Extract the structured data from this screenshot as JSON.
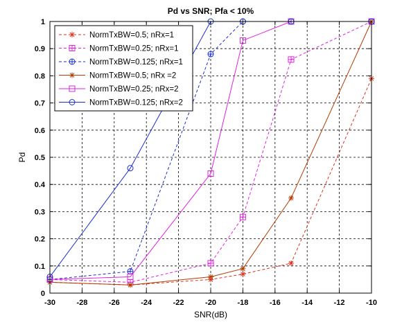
{
  "chart_data": {
    "type": "line",
    "title": "Pd vs SNR; Pfa < 10%",
    "xlabel": "SNR(dB)",
    "ylabel": "Pd",
    "xlim": [
      -30,
      -10
    ],
    "ylim": [
      0,
      1
    ],
    "xticks": [
      -30,
      -28,
      -26,
      -24,
      -22,
      -20,
      -18,
      -16,
      -14,
      -12,
      -10
    ],
    "yticks": [
      0,
      0.1,
      0.2,
      0.3,
      0.4,
      0.5,
      0.6,
      0.7,
      0.8,
      0.9,
      1
    ],
    "xtick_labels": [
      "-30",
      "-28",
      "-26",
      "-24",
      "-22",
      "-20",
      "-18",
      "-16",
      "-14",
      "-12",
      "-10"
    ],
    "ytick_labels": [
      "0",
      "0.1",
      "0.2",
      "0.3",
      "0.4",
      "0.5",
      "0.6",
      "0.7",
      "0.8",
      "0.9",
      "1"
    ],
    "grid": true,
    "legend_position": "top-left",
    "x": [
      -30,
      -25,
      -20,
      -18,
      -15,
      -10
    ],
    "series": [
      {
        "name": "NormTxBW=0.5; nRx=1",
        "values": [
          0.04,
          0.03,
          0.05,
          0.07,
          0.11,
          0.79
        ],
        "color": "#e0301e",
        "dash": "dashed",
        "marker": "star"
      },
      {
        "name": "NormTxBW=0.25; nRx=1",
        "values": [
          0.05,
          0.04,
          0.11,
          0.28,
          0.86,
          1.0
        ],
        "color": "#e020e0",
        "dash": "dashed",
        "marker": "square-plus"
      },
      {
        "name": "NormTxBW=0.125; nRx=1",
        "values": [
          0.05,
          0.08,
          0.88,
          1.0,
          1.0,
          1.0
        ],
        "color": "#1a2ecc",
        "dash": "dashed",
        "marker": "circle-plus"
      },
      {
        "name": "NormTxBW=0.5; nRx =2",
        "values": [
          0.04,
          0.03,
          0.06,
          0.09,
          0.35,
          1.0
        ],
        "color": "#b33a00",
        "dash": "solid",
        "marker": "star"
      },
      {
        "name": "NormTxBW=0.25; nRx=2",
        "values": [
          0.05,
          0.06,
          0.44,
          0.93,
          1.0,
          1.0
        ],
        "color": "#e020e0",
        "dash": "solid",
        "marker": "square"
      },
      {
        "name": "NormTxBW=0.125; nRx=2",
        "values": [
          0.06,
          0.46,
          1.0,
          1.0,
          1.0,
          1.0
        ],
        "color": "#1a2ecc",
        "dash": "solid",
        "marker": "circle"
      }
    ]
  }
}
